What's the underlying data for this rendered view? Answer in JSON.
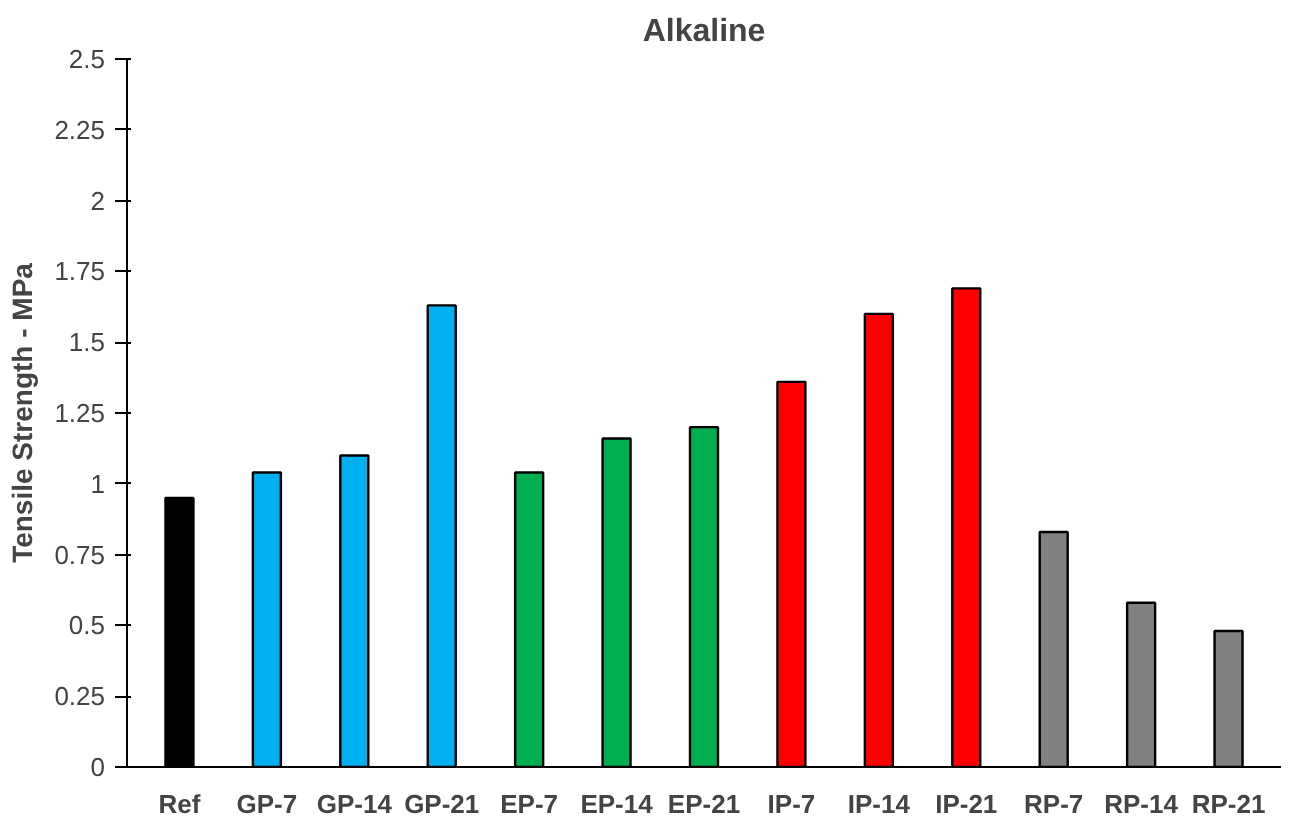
{
  "chart_data": {
    "type": "bar",
    "title": "Alkaline",
    "ylabel": "Tensile Strength - MPa",
    "categories": [
      "Ref",
      "GP-7",
      "GP-14",
      "GP-21",
      "EP-7",
      "EP-14",
      "EP-21",
      "IP-7",
      "IP-14",
      "IP-21",
      "RP-7",
      "RP-14",
      "RP-21"
    ],
    "values": [
      0.95,
      1.04,
      1.1,
      1.63,
      1.04,
      1.16,
      1.2,
      1.36,
      1.6,
      1.69,
      0.83,
      0.58,
      0.48
    ],
    "colors": [
      "#000000",
      "#00b0f0",
      "#00b0f0",
      "#00b0f0",
      "#00b050",
      "#00b050",
      "#00b050",
      "#ff0000",
      "#ff0000",
      "#ff0000",
      "#808080",
      "#808080",
      "#808080"
    ],
    "ylim": [
      0,
      2.5
    ],
    "yticks": [
      0,
      0.25,
      0.5,
      0.75,
      1,
      1.25,
      1.5,
      1.75,
      2,
      2.25,
      2.5
    ],
    "grid": false
  }
}
